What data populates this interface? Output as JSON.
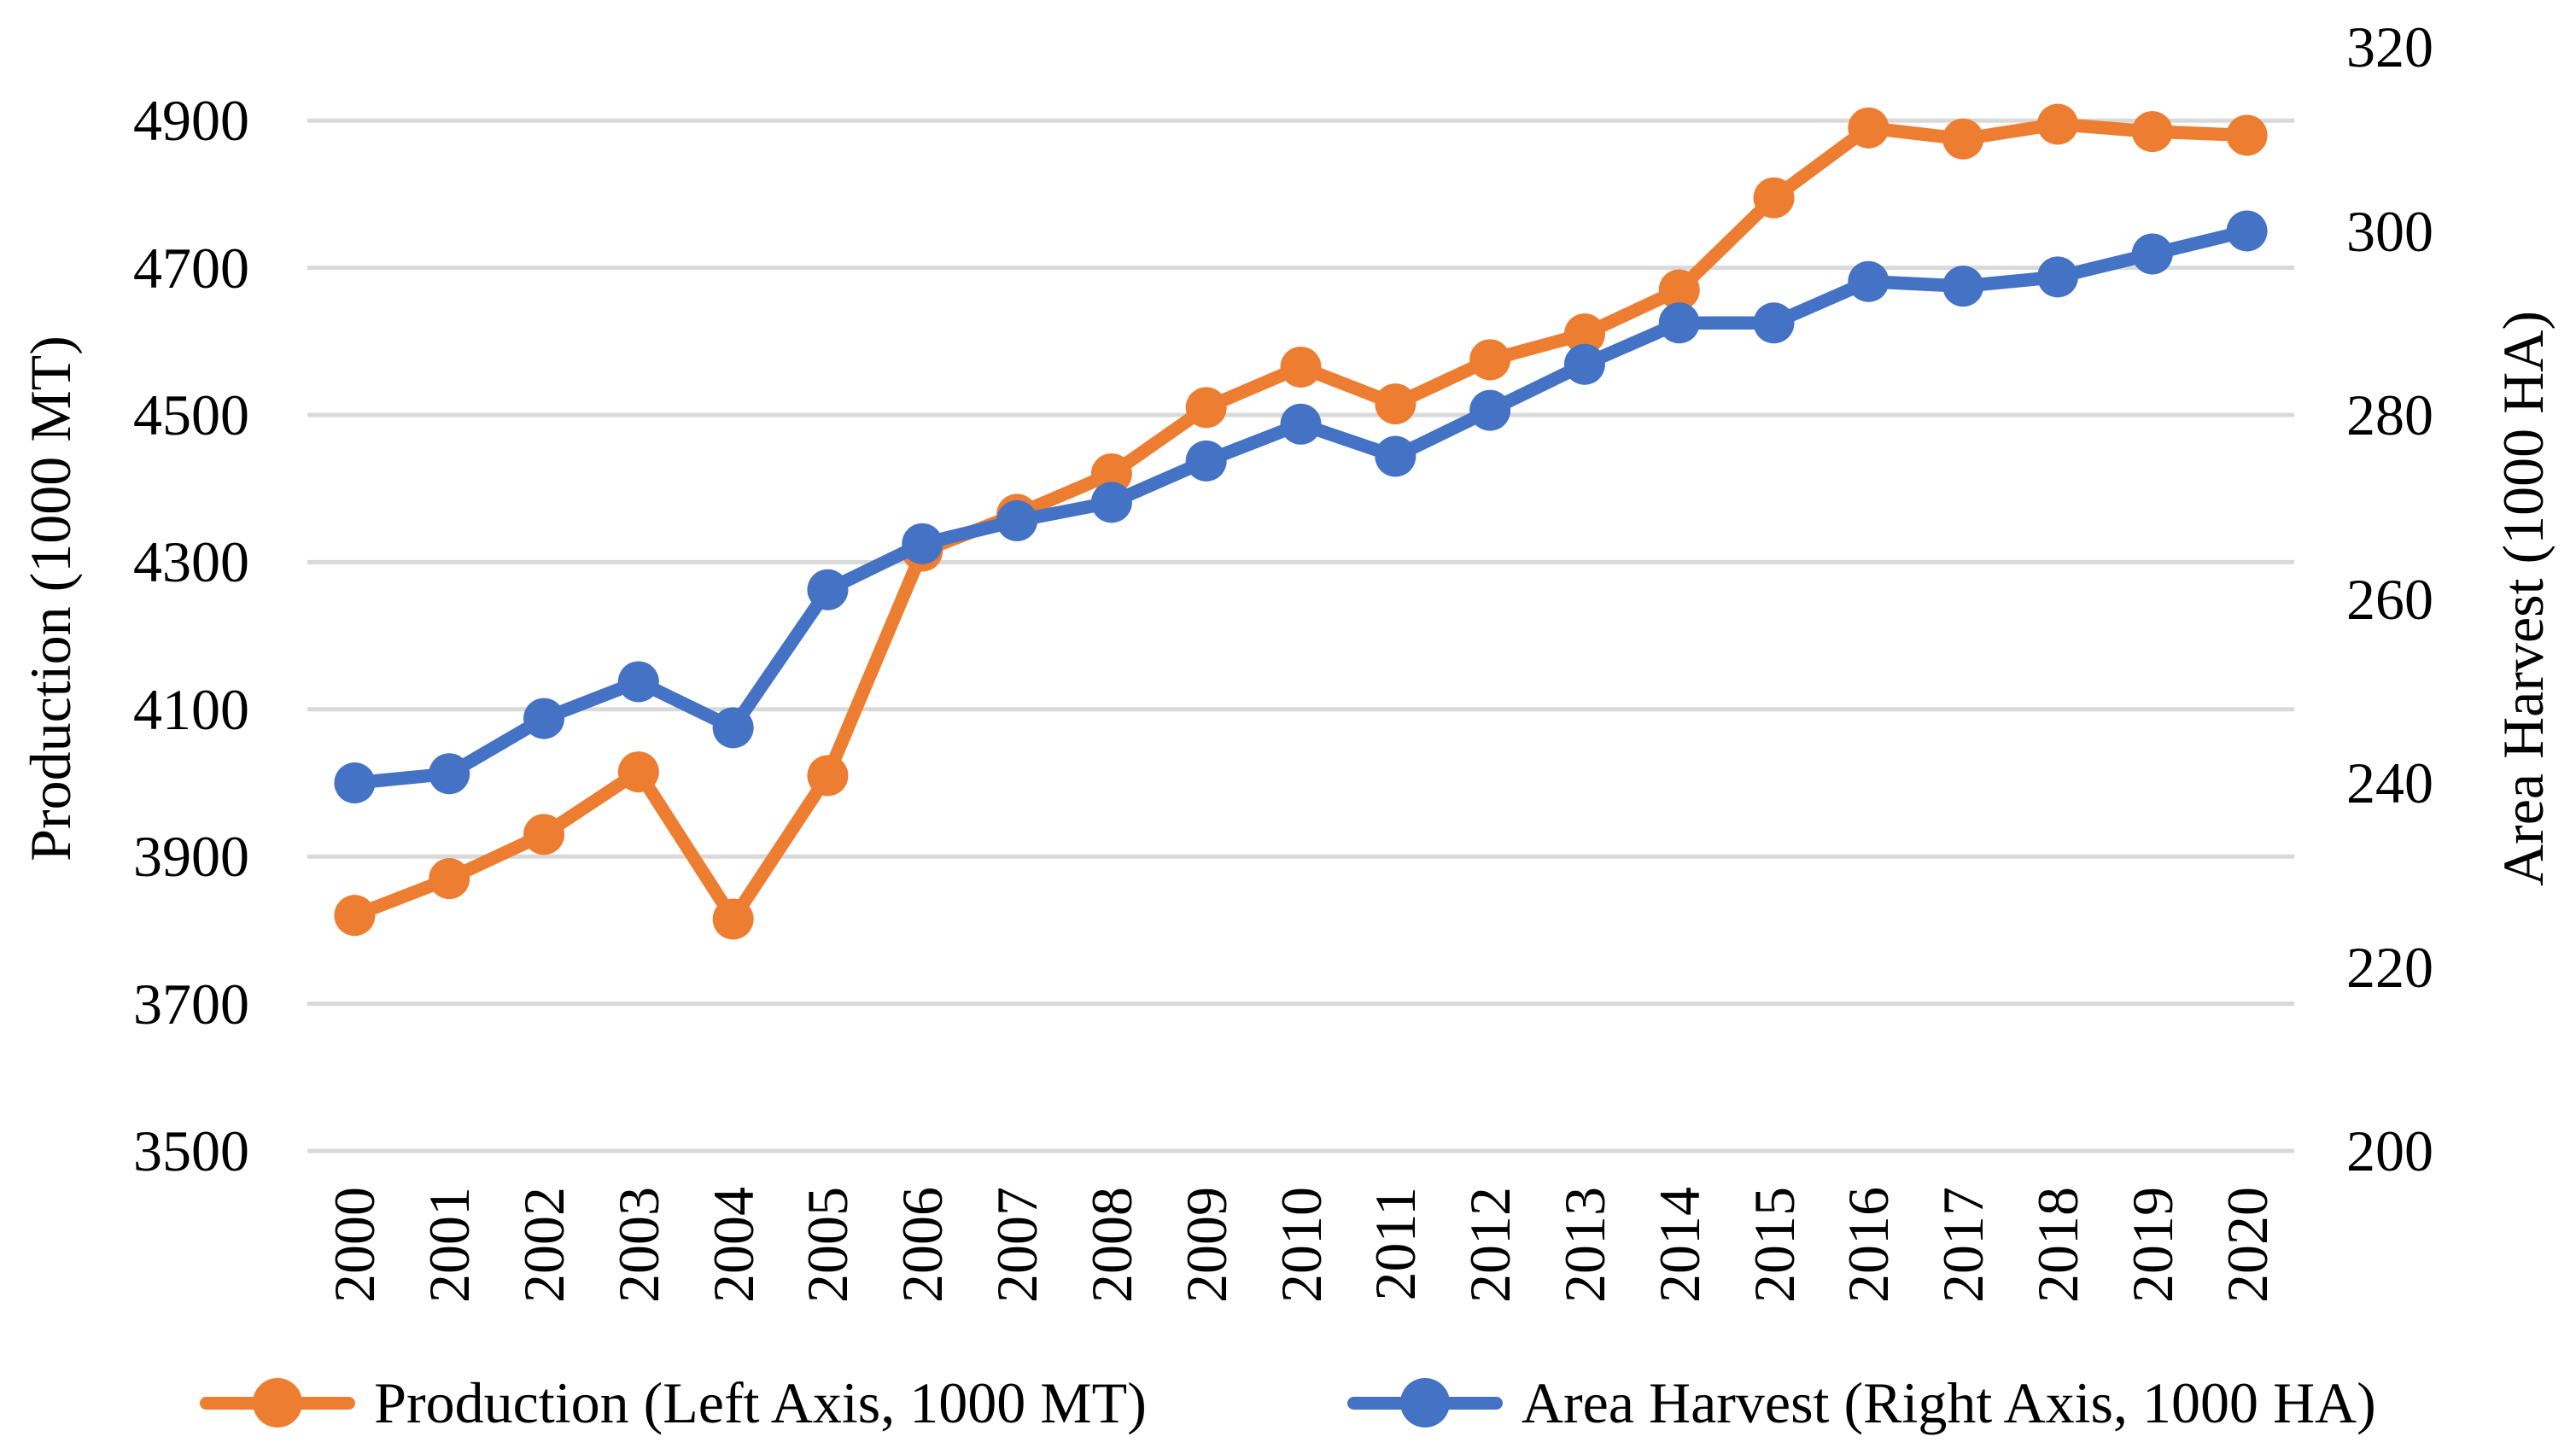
{
  "chart_data": {
    "type": "line",
    "title": "",
    "categories": [
      "2000",
      "2001",
      "2002",
      "2003",
      "2004",
      "2005",
      "2006",
      "2007",
      "2008",
      "2009",
      "2010",
      "2011",
      "2012",
      "2013",
      "2014",
      "2015",
      "2016",
      "2017",
      "2018",
      "2019",
      "2020"
    ],
    "series": [
      {
        "name": "Production (Left Axis, 1000 MT)",
        "axis": "left",
        "color": "#ED7D31",
        "values": [
          3820,
          3870,
          3930,
          4015,
          3815,
          4010,
          4315,
          4365,
          4420,
          4510,
          4565,
          4515,
          4575,
          4610,
          4670,
          4795,
          4890,
          4875,
          4895,
          4885,
          4880
        ]
      },
      {
        "name": "Area Harvest (Right Axis, 1000 HA)",
        "axis": "right",
        "color": "#4472C4",
        "values": [
          240,
          241,
          247,
          251,
          246,
          261,
          266,
          268.5,
          270.5,
          275,
          279,
          275.5,
          280.5,
          285.5,
          290,
          290,
          294.5,
          294,
          295,
          297.5,
          300
        ]
      }
    ],
    "left_axis": {
      "label": "Production (1000 MT)",
      "min": 3500,
      "max": 5000,
      "ticks": [
        3500,
        3700,
        3900,
        4100,
        4300,
        4500,
        4700,
        4900
      ]
    },
    "right_axis": {
      "label": "Area Harvest (1000 HA)",
      "min": 200,
      "max": 320,
      "ticks": [
        200,
        220,
        240,
        260,
        280,
        300,
        320
      ]
    },
    "xlabel": "",
    "grid": true,
    "gridline_color": "#D9D9D9",
    "background_color": "#FFFFFF",
    "text_color": "#000000",
    "legend_position": "bottom"
  }
}
